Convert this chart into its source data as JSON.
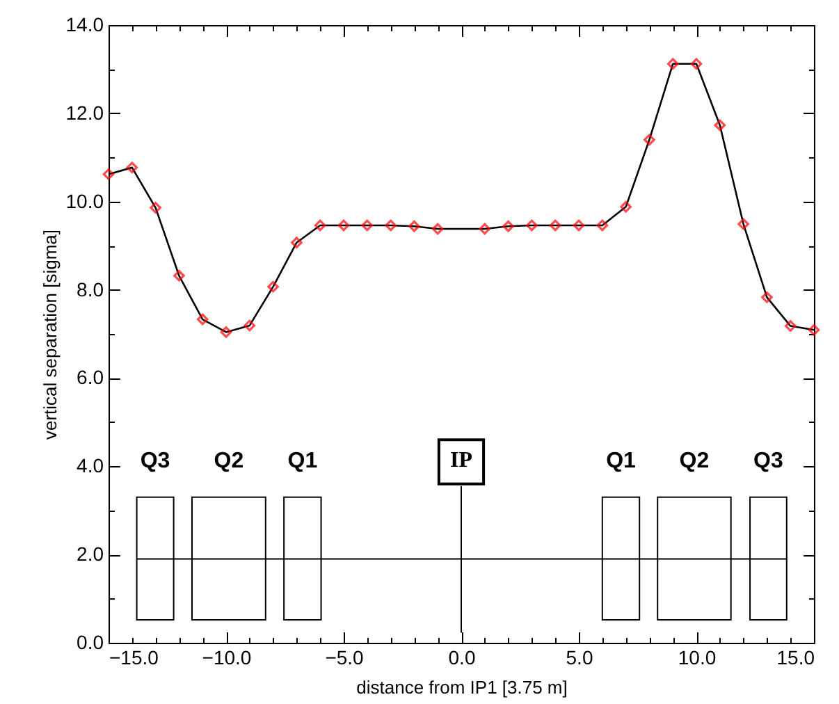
{
  "chart_data": {
    "type": "line",
    "xlabel": "distance from IP1 [3.75 m]",
    "ylabel": "vertical separation [sigma]",
    "x": [
      -15,
      -14,
      -13,
      -12,
      -11,
      -10,
      -9,
      -8,
      -7,
      -6,
      -5,
      -4,
      -3,
      -2,
      -1,
      1,
      2,
      3,
      4,
      5,
      6,
      7,
      8,
      9,
      10,
      11,
      12,
      13,
      14,
      15
    ],
    "series": [
      {
        "color": "#ff0000",
        "values": [
          10.62,
          10.77,
          9.86,
          8.32,
          7.33,
          7.04,
          7.19,
          8.07,
          9.07,
          9.46,
          9.46,
          9.46,
          9.46,
          9.44,
          9.38,
          9.38,
          9.44,
          9.46,
          9.46,
          9.46,
          9.46,
          9.88,
          11.4,
          13.12,
          13.12,
          11.73,
          9.49,
          7.83,
          7.18,
          7.09
        ]
      }
    ],
    "xlim": [
      -15,
      15
    ],
    "ylim": [
      0,
      14
    ],
    "xticks": [
      {
        "value": -15,
        "label": "−15.0"
      },
      {
        "value": -14,
        "label": null
      },
      {
        "value": -13,
        "label": null
      },
      {
        "value": -12,
        "label": null
      },
      {
        "value": -11,
        "label": null
      },
      {
        "value": -10,
        "label": "−10.0"
      },
      {
        "value": -9,
        "label": null
      },
      {
        "value": -8,
        "label": null
      },
      {
        "value": -7,
        "label": null
      },
      {
        "value": -6,
        "label": null
      },
      {
        "value": -5,
        "label": "−5.0"
      },
      {
        "value": -4,
        "label": null
      },
      {
        "value": -3,
        "label": null
      },
      {
        "value": -2,
        "label": null
      },
      {
        "value": -1,
        "label": null
      },
      {
        "value": 0,
        "label": "0.0"
      },
      {
        "value": 1,
        "label": null
      },
      {
        "value": 2,
        "label": null
      },
      {
        "value": 3,
        "label": null
      },
      {
        "value": 4,
        "label": null
      },
      {
        "value": 5,
        "label": "5.0"
      },
      {
        "value": 6,
        "label": null
      },
      {
        "value": 7,
        "label": null
      },
      {
        "value": 8,
        "label": null
      },
      {
        "value": 9,
        "label": null
      },
      {
        "value": 10,
        "label": "10.0"
      },
      {
        "value": 11,
        "label": null
      },
      {
        "value": 12,
        "label": null
      },
      {
        "value": 13,
        "label": null
      },
      {
        "value": 14,
        "label": null
      },
      {
        "value": 15,
        "label": "15.0"
      }
    ],
    "yticks": [
      {
        "value": 0,
        "label": "0.0"
      },
      {
        "value": 1,
        "label": null
      },
      {
        "value": 2,
        "label": "2.0"
      },
      {
        "value": 3,
        "label": null
      },
      {
        "value": 4,
        "label": "4.0"
      },
      {
        "value": 5,
        "label": null
      },
      {
        "value": 6,
        "label": "6.0"
      },
      {
        "value": 7,
        "label": null
      },
      {
        "value": 8,
        "label": "8.0"
      },
      {
        "value": 9,
        "label": null
      },
      {
        "value": 10,
        "label": "10.0"
      },
      {
        "value": 11,
        "label": null
      },
      {
        "value": 12,
        "label": "12.0"
      },
      {
        "value": 13,
        "label": null
      },
      {
        "value": 14,
        "label": "14.0"
      }
    ],
    "annotations": [
      "Q3",
      "Q2",
      "Q1",
      "IP",
      "Q1",
      "Q2",
      "Q3"
    ],
    "ref_lines": [
      {
        "axis": "y",
        "value": 1.9,
        "color": "#000000"
      }
    ],
    "marker": "diamond",
    "grid": false
  }
}
